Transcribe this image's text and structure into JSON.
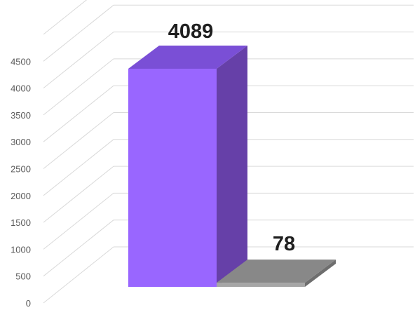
{
  "chart_data": {
    "type": "bar",
    "categories": [
      "",
      ""
    ],
    "values": [
      4089,
      78
    ],
    "colors": {
      "front": [
        "#9966ff",
        "#a6a6a6"
      ],
      "side": [
        "#6640a8",
        "#6e6e6e"
      ],
      "top": [
        "#7a4fd6",
        "#888888"
      ]
    },
    "title": "",
    "xlabel": "",
    "ylabel": "",
    "ylim": [
      0,
      5000
    ],
    "yticks": [
      0,
      500,
      1000,
      1500,
      2000,
      2500,
      3000,
      3500,
      4000,
      4500
    ],
    "ytick_labels": [
      "0",
      "500",
      "1000",
      "1500",
      "2000",
      "2500",
      "3000",
      "3500",
      "4000",
      "4500"
    ],
    "data_labels": [
      "4089",
      "78"
    ],
    "grid": true,
    "legend": "none",
    "style": "3d-column"
  }
}
